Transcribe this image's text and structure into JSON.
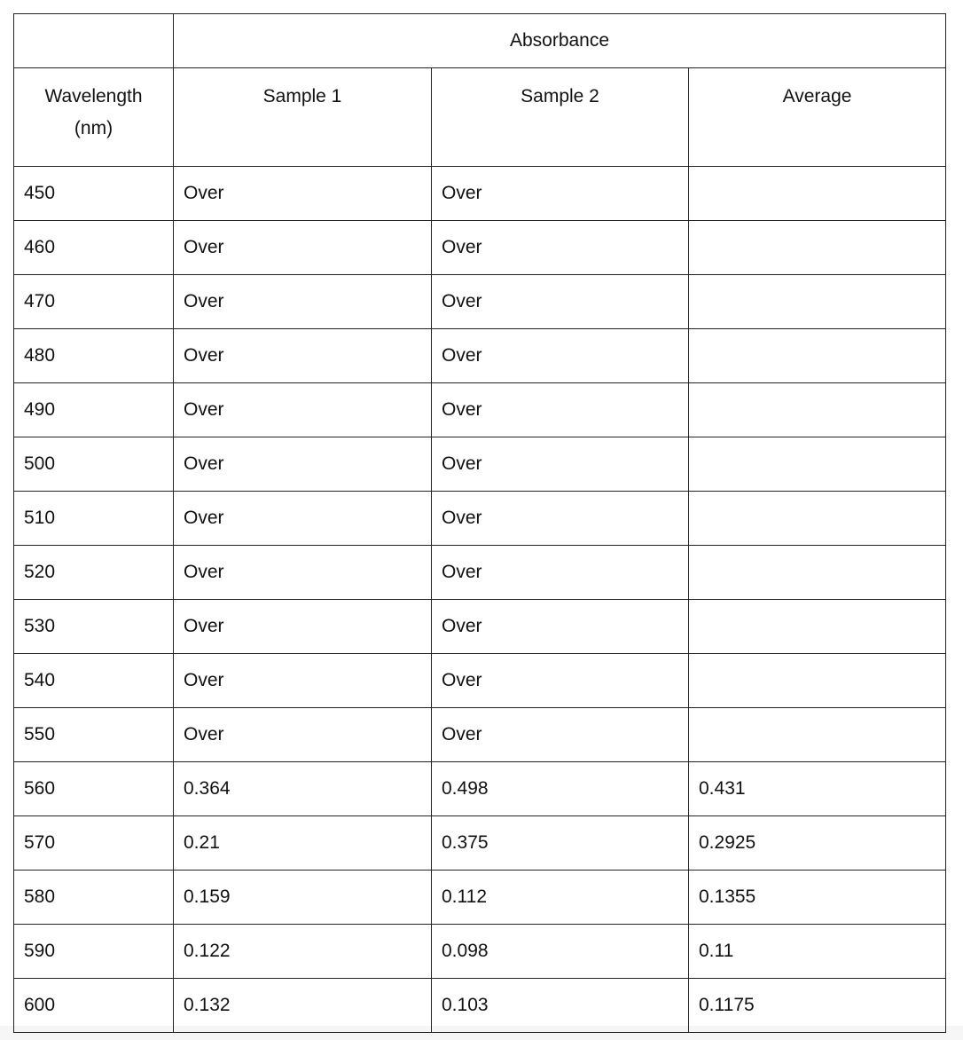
{
  "table": {
    "group_header": "Absorbance",
    "columns": [
      "Wavelength (nm)",
      "Sample 1",
      "Sample 2",
      "Average"
    ],
    "column_header_lines": [
      [
        "Wavelength",
        "(nm)"
      ],
      [
        "Sample 1"
      ],
      [
        "Sample 2"
      ],
      [
        "Average"
      ]
    ],
    "rows": [
      [
        "450",
        "Over",
        "Over",
        ""
      ],
      [
        "460",
        "Over",
        "Over",
        ""
      ],
      [
        "470",
        "Over",
        "Over",
        ""
      ],
      [
        "480",
        "Over",
        "Over",
        ""
      ],
      [
        "490",
        "Over",
        "Over",
        ""
      ],
      [
        "500",
        "Over",
        "Over",
        ""
      ],
      [
        "510",
        "Over",
        "Over",
        ""
      ],
      [
        "520",
        "Over",
        "Over",
        ""
      ],
      [
        "530",
        "Over",
        "Over",
        ""
      ],
      [
        "540",
        "Over",
        "Over",
        ""
      ],
      [
        "550",
        "Over",
        "Over",
        ""
      ],
      [
        "560",
        "0.364",
        "0.498",
        "0.431"
      ],
      [
        "570",
        "0.21",
        "0.375",
        "0.2925"
      ],
      [
        "580",
        "0.159",
        "0.112",
        "0.1355"
      ],
      [
        "590",
        "0.122",
        "0.098",
        "0.11"
      ],
      [
        "600",
        "0.132",
        "0.103",
        "0.1175"
      ]
    ]
  }
}
